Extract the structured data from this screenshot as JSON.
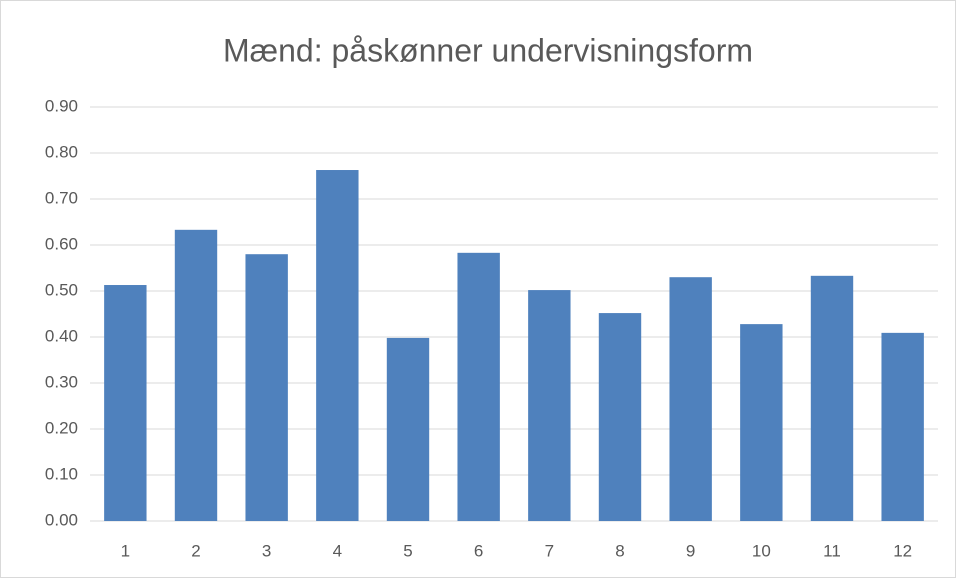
{
  "chart_data": {
    "type": "bar",
    "title": "Mænd: påskønner undervisningsform",
    "categories": [
      "1",
      "2",
      "3",
      "4",
      "5",
      "6",
      "7",
      "8",
      "9",
      "10",
      "11",
      "12"
    ],
    "values": [
      0.513,
      0.633,
      0.58,
      0.763,
      0.398,
      0.583,
      0.502,
      0.452,
      0.53,
      0.428,
      0.533,
      0.409
    ],
    "color": "#4f81bd",
    "ylim": [
      0,
      0.9
    ],
    "yticks": [
      {
        "value": 0,
        "label": "0.00"
      },
      {
        "value": 0.1,
        "label": "0.10"
      },
      {
        "value": 0.2,
        "label": "0.20"
      },
      {
        "value": 0.3,
        "label": "0.30"
      },
      {
        "value": 0.4,
        "label": "0.40"
      },
      {
        "value": 0.5,
        "label": "0.50"
      },
      {
        "value": 0.6,
        "label": "0.60"
      },
      {
        "value": 0.7,
        "label": "0.70"
      },
      {
        "value": 0.8,
        "label": "0.80"
      },
      {
        "value": 0.9,
        "label": "0.90"
      }
    ],
    "grid": true
  }
}
